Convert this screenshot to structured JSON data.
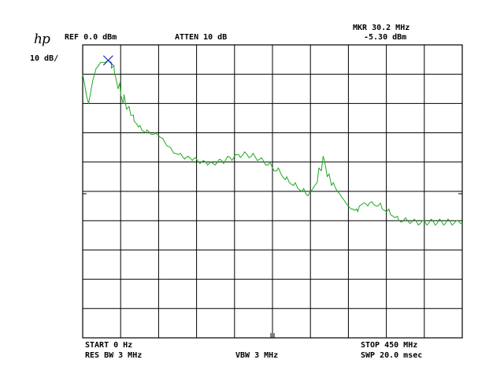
{
  "header": {
    "logo": "hp",
    "ref_level": "REF 0.0 dBm",
    "attenuation": "ATTEN 10 dB",
    "marker_freq": "MKR 30.2 MHz",
    "marker_level": "-5.30 dBm",
    "scale": "10 dB/"
  },
  "footer": {
    "start": "START 0 Hz",
    "res_bw": "RES BW 3 MHz",
    "vbw": "VBW 3 MHz",
    "stop": "STOP 450 MHz",
    "sweep": "SWP 20.0 msec"
  },
  "colors": {
    "trace": "#1fa81f",
    "marker": "#1a2ec8",
    "grid": "#000000"
  },
  "chart_data": {
    "type": "line",
    "title": "",
    "xlabel": "",
    "ylabel": "",
    "x_unit": "MHz",
    "y_unit": "dBm",
    "xlim": [
      0,
      450
    ],
    "ylim": [
      -100,
      0
    ],
    "grid": true,
    "grid_divisions": {
      "x": 10,
      "y": 10
    },
    "marker": {
      "x": 30.2,
      "y": -5.3
    },
    "series": [
      {
        "x": [
          0,
          2,
          5,
          7,
          9,
          12,
          16,
          19,
          21,
          24,
          27,
          30.2,
          34,
          37,
          39,
          42,
          45,
          48,
          52,
          57,
          61,
          66,
          70,
          75,
          80,
          85,
          90,
          95,
          99,
          104,
          108,
          113,
          118,
          122,
          127,
          131,
          136,
          141,
          146,
          150,
          155,
          160,
          165,
          170,
          175,
          180,
          185,
          190,
          195,
          200,
          205,
          210,
          215,
          220,
          225,
          230,
          235,
          240,
          245,
          250,
          255,
          260,
          265,
          270,
          275,
          280,
          285,
          290,
          295,
          300,
          305,
          310,
          315,
          318,
          322,
          325,
          328,
          331,
          335,
          340,
          345,
          350,
          355,
          360,
          365,
          370,
          375,
          380,
          385,
          390,
          395,
          400,
          405,
          410,
          415,
          420,
          425,
          430,
          435,
          440,
          445,
          450
        ],
        "y": [
          -10,
          -13,
          -18,
          -20,
          -17,
          -12,
          -8,
          -7,
          -6,
          -6,
          -6,
          -5.3,
          -6,
          -7,
          -11,
          -15,
          -17,
          -20,
          -22,
          -24,
          -26,
          -28,
          -29,
          -30,
          -30,
          -30.5,
          -31,
          -32,
          -34,
          -35,
          -37,
          -37.5,
          -38,
          -38.5,
          -38.5,
          -39,
          -39.5,
          -40,
          -40,
          -40.5,
          -40.5,
          -40,
          -39.5,
          -39,
          -38.5,
          -38,
          -37.5,
          -37.5,
          -37.5,
          -38,
          -38.5,
          -39,
          -40,
          -41,
          -42,
          -43,
          -44,
          -46,
          -47,
          -48,
          -49,
          -50,
          -51,
          -50,
          -48,
          -42,
          -38,
          -45,
          -48,
          -49,
          -51,
          -53,
          -55,
          -56,
          -56.5,
          -56,
          -55,
          -54.5,
          -54,
          -54,
          -54.5,
          -55,
          -56,
          -57,
          -58,
          -59,
          -60,
          -60,
          -60,
          -60.5,
          -60,
          -61,
          -60,
          -61,
          -60,
          -61,
          -60,
          -61,
          -60,
          -61,
          -60,
          -60.5
        ],
        "noise_points": [
          [
            34,
            -8
          ],
          [
            38,
            -10
          ],
          [
            44,
            -13
          ],
          [
            49,
            -17
          ],
          [
            55,
            -21
          ],
          [
            60,
            -24
          ],
          [
            64,
            -27
          ],
          [
            68,
            -27.5
          ],
          [
            72,
            -29.5
          ],
          [
            76,
            -29
          ],
          [
            81,
            -30.5
          ],
          [
            86,
            -30
          ],
          [
            92,
            -31.5
          ],
          [
            100,
            -34.5
          ],
          [
            106,
            -36
          ],
          [
            110,
            -37
          ],
          [
            116,
            -37
          ],
          [
            121,
            -39
          ],
          [
            125,
            -38
          ],
          [
            130,
            -39.5
          ],
          [
            134,
            -38.5
          ],
          [
            139,
            -40.5
          ],
          [
            143,
            -39.5
          ],
          [
            148,
            -41
          ],
          [
            152,
            -40
          ],
          [
            157,
            -41
          ],
          [
            162,
            -39
          ],
          [
            167,
            -40.5
          ],
          [
            172,
            -38
          ],
          [
            177,
            -39.5
          ],
          [
            181,
            -37.5
          ],
          [
            187,
            -38.5
          ],
          [
            192,
            -36.5
          ],
          [
            197,
            -38.5
          ],
          [
            202,
            -37
          ],
          [
            207,
            -39.5
          ],
          [
            212,
            -38.5
          ],
          [
            217,
            -41
          ],
          [
            222,
            -40
          ],
          [
            227,
            -43
          ],
          [
            232,
            -42
          ],
          [
            237,
            -45
          ],
          [
            242,
            -45
          ],
          [
            247,
            -47.5
          ],
          [
            252,
            -47
          ],
          [
            257,
            -49.5
          ],
          [
            262,
            -49
          ],
          [
            267,
            -51.5
          ],
          [
            272,
            -49.5
          ],
          [
            278,
            -47
          ],
          [
            283,
            -43
          ],
          [
            287,
            -40
          ],
          [
            292,
            -44
          ],
          [
            297,
            -47
          ],
          [
            302,
            -50
          ],
          [
            307,
            -52
          ],
          [
            312,
            -54
          ],
          [
            320,
            -56
          ],
          [
            326,
            -57
          ],
          [
            333,
            -54
          ],
          [
            338,
            -55
          ],
          [
            343,
            -53.5
          ],
          [
            348,
            -55
          ],
          [
            353,
            -54
          ],
          [
            358,
            -56.5
          ],
          [
            363,
            -56
          ],
          [
            368,
            -58.5
          ],
          [
            373,
            -58.5
          ],
          [
            378,
            -60.5
          ],
          [
            383,
            -59
          ],
          [
            388,
            -61
          ],
          [
            393,
            -59.5
          ],
          [
            398,
            -61.5
          ],
          [
            403,
            -60
          ],
          [
            408,
            -61.5
          ],
          [
            413,
            -59.5
          ],
          [
            418,
            -61.5
          ],
          [
            423,
            -59.5
          ],
          [
            428,
            -61.5
          ],
          [
            433,
            -59.5
          ],
          [
            438,
            -61.5
          ],
          [
            443,
            -60
          ],
          [
            448,
            -61
          ]
        ]
      }
    ]
  }
}
